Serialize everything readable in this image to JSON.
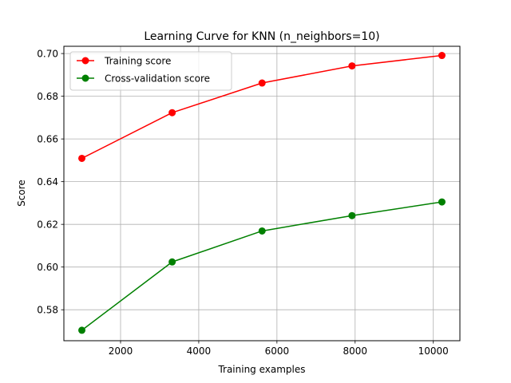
{
  "chart_data": {
    "type": "line",
    "title": "Learning Curve for KNN (n_neighbors=10)",
    "xlabel": "Training examples",
    "ylabel": "Score",
    "xlim": [
      550,
      10680
    ],
    "ylim": [
      0.5655,
      0.7034
    ],
    "xticks": [
      2000,
      4000,
      6000,
      8000,
      10000
    ],
    "xtick_labels": [
      "2000",
      "4000",
      "6000",
      "8000",
      "10000"
    ],
    "yticks": [
      0.58,
      0.6,
      0.62,
      0.64,
      0.66,
      0.68,
      0.7
    ],
    "ytick_labels": [
      "0.58",
      "0.60",
      "0.62",
      "0.64",
      "0.66",
      "0.68",
      "0.70"
    ],
    "grid": true,
    "legend_position": "upper-left",
    "x": [
      1010,
      3320,
      5620,
      7920,
      10220
    ],
    "series": [
      {
        "name": "Training score",
        "color": "#ff0000",
        "marker": "circle",
        "values": [
          0.6509,
          0.6723,
          0.6862,
          0.6942,
          0.6991
        ]
      },
      {
        "name": "Cross-validation score",
        "color": "#008000",
        "marker": "circle",
        "values": [
          0.5704,
          0.6024,
          0.6169,
          0.6241,
          0.6305
        ]
      }
    ]
  }
}
